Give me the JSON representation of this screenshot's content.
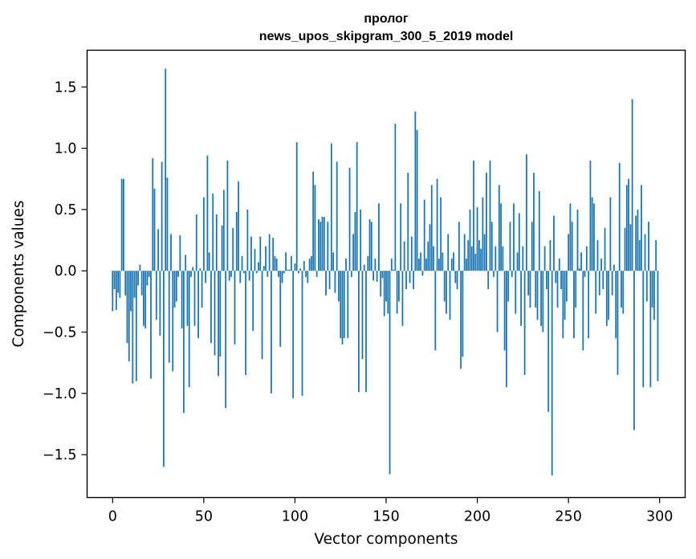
{
  "chart_data": {
    "type": "bar",
    "title": "пролог",
    "subtitle": "news_upos_skipgram_300_5_2019 model",
    "xlabel": "Vector components",
    "ylabel": "Components values",
    "xlim": [
      -14,
      314
    ],
    "ylim": [
      -1.85,
      1.8
    ],
    "xticks": [
      0,
      50,
      100,
      150,
      200,
      250,
      300
    ],
    "yticks": [
      -1.5,
      -1.0,
      -0.5,
      0.0,
      0.5,
      1.0,
      1.5
    ],
    "ytick_labels": [
      "−1.5",
      "−1.0",
      "−0.5",
      "0.0",
      "0.5",
      "1.0",
      "1.5"
    ],
    "bar_color": "#1f77b4",
    "grid": false,
    "series": [
      {
        "name": "components",
        "values": [
          -0.33,
          -0.15,
          -0.32,
          -0.18,
          -0.22,
          0.75,
          0.75,
          -0.2,
          -0.59,
          -0.74,
          -0.33,
          -0.92,
          -0.22,
          -0.9,
          -0.12,
          0.05,
          -0.2,
          -0.45,
          -0.47,
          -0.12,
          -0.05,
          -0.88,
          0.92,
          0.67,
          -0.4,
          0.34,
          -0.53,
          0.89,
          -1.6,
          1.65,
          0.76,
          -0.75,
          0.3,
          -0.82,
          -0.3,
          -0.25,
          -0.05,
          0.29,
          -0.47,
          -1.16,
          0.13,
          -0.45,
          -0.95,
          -0.05,
          0.03,
          -0.45,
          0.46,
          -0.55,
          0.02,
          -0.3,
          0.6,
          -0.1,
          0.94,
          0.15,
          -0.59,
          0.63,
          -0.69,
          0.46,
          -0.86,
          -0.7,
          0.37,
          0.66,
          -1.12,
          0.9,
          -0.08,
          -0.05,
          0.35,
          -0.6,
          0.48,
          0.73,
          -0.1,
          0.12,
          -0.02,
          -0.85,
          0.5,
          -0.08,
          0.28,
          -0.49,
          0.18,
          -0.02,
          0.07,
          0.28,
          -0.72,
          0.04,
          0.2,
          -0.05,
          0.3,
          -1.0,
          0.27,
          0.12,
          0.1,
          -0.05,
          -0.62,
          -0.1,
          -0.02,
          0.15,
          0.01,
          0.01,
          0.12,
          -1.04,
          0.06,
          1.05,
          -0.02,
          0.02,
          -1.02,
          0.08,
          -0.05,
          -0.1,
          0.1,
          0.12,
          0.81,
          0.7,
          -0.05,
          0.42,
          0.4,
          0.44,
          0.44,
          -0.2,
          0.4,
          -0.15,
          1.04,
          0.15,
          -0.18,
          0.89,
          -0.25,
          -0.55,
          -0.6,
          -0.55,
          0.1,
          -0.55,
          0.84,
          -0.05,
          0.3,
          0.48,
          1.05,
          -0.99,
          0.5,
          -0.72,
          0.05,
          -0.99,
          0.12,
          0.42,
          0.4,
          -0.08,
          0.1,
          -0.09,
          0.55,
          -0.21,
          -0.06,
          -0.37,
          -0.25,
          -0.35,
          -1.66,
          0.1,
          0.01,
          1.2,
          -0.35,
          -0.25,
          0.55,
          -0.45,
          0.24,
          -0.15,
          0.8,
          -0.1,
          0.28,
          -0.15,
          1.3,
          1.15,
          0.1,
          0.15,
          -0.04,
          0.58,
          0.1,
          0.24,
          0.38,
          0.7,
          0.2,
          -0.65,
          0.75,
          0.1,
          0.6,
          0.15,
          -0.25,
          -0.35,
          0.3,
          -0.4,
          0.1,
          0.15,
          -0.1,
          -0.15,
          0.4,
          -0.8,
          -0.7,
          0.3,
          0.1,
          0.25,
          0.5,
          0.2,
          0.9,
          0.14,
          0.52,
          0.25,
          0.18,
          0.6,
          0.3,
          0.8,
          -0.15,
          0.9,
          0.4,
          -0.05,
          0.2,
          -0.5,
          0.7,
          0.55,
          0.2,
          -0.65,
          -0.95,
          -0.25,
          0.4,
          -0.05,
          0.55,
          -0.35,
          0.15,
          0.47,
          -0.45,
          0.2,
          -0.85,
          0.95,
          -0.2,
          -0.3,
          0.4,
          0.8,
          -0.3,
          -0.4,
          0.65,
          -0.45,
          -0.5,
          0.2,
          -0.15,
          -1.15,
          0.25,
          -1.67,
          0.45,
          -0.1,
          -0.3,
          0.1,
          -0.15,
          -0.55,
          -0.4,
          -0.25,
          0.3,
          0.55,
          0.4,
          -0.55,
          -0.3,
          0.5,
          0.02,
          0.15,
          -0.65,
          -0.05,
          0.2,
          -0.55,
          0.9,
          0.6,
          0.55,
          -0.35,
          0.25,
          -0.2,
          0.1,
          -0.15,
          0.35,
          -0.45,
          -0.4,
          0.6,
          -0.2,
          0.05,
          -0.55,
          -0.85,
          0.88,
          -0.3,
          -0.35,
          0.35,
          0.7,
          0.75,
          0.38,
          1.4,
          -1.3,
          0.45,
          0.5,
          0.25,
          0.7,
          -0.95,
          0.3,
          -0.25,
          0.4,
          -0.95,
          -0.3,
          -0.4,
          0.25,
          -0.9
        ]
      }
    ]
  }
}
